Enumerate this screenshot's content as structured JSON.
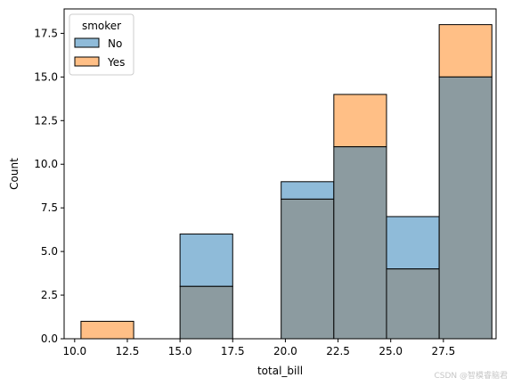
{
  "chart_data": {
    "type": "bar",
    "xlabel": "total_bill",
    "ylabel": "Count",
    "xlim": [
      9.5,
      30.0
    ],
    "ylim": [
      0,
      18.9
    ],
    "xticks": [
      10.0,
      12.5,
      15.0,
      17.5,
      20.0,
      22.5,
      25.0,
      27.5
    ],
    "yticks": [
      0.0,
      2.5,
      5.0,
      7.5,
      10.0,
      12.5,
      15.0,
      17.5
    ],
    "grid": false,
    "bins": [
      {
        "x0": 10.3,
        "x1": 12.8
      },
      {
        "x0": 12.8,
        "x1": 15.0
      },
      {
        "x0": 15.0,
        "x1": 17.5
      },
      {
        "x0": 17.5,
        "x1": 19.8
      },
      {
        "x0": 19.8,
        "x1": 22.3
      },
      {
        "x0": 22.3,
        "x1": 24.8
      },
      {
        "x0": 24.8,
        "x1": 27.3
      },
      {
        "x0": 27.3,
        "x1": 29.8
      }
    ],
    "series": [
      {
        "name": "No",
        "color": "#1f77b4",
        "values": [
          0,
          0,
          6,
          0,
          9,
          11,
          7,
          15
        ]
      },
      {
        "name": "Yes",
        "color": "#ff7f0e",
        "values": [
          1,
          0,
          3,
          0,
          8,
          14,
          4,
          18
        ]
      }
    ],
    "legend": {
      "title": "smoker",
      "position": "top-left"
    },
    "overlap_color": "#8c9ba0"
  },
  "watermark": "CSDN @智模睿脑君"
}
